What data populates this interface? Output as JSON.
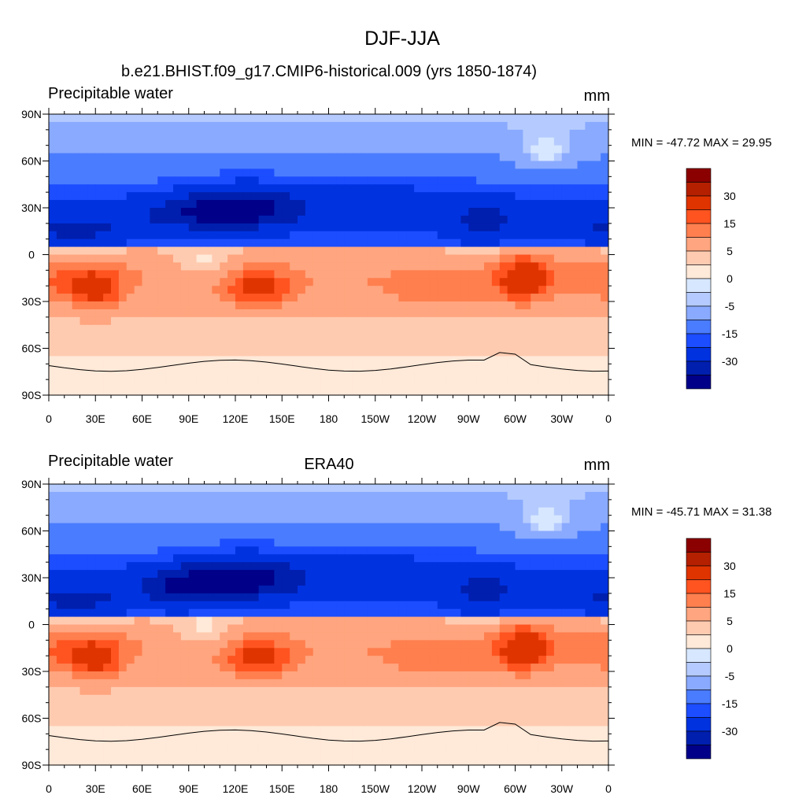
{
  "title": "DJF-JJA",
  "colorbar": {
    "levels": [
      -40,
      -30,
      -20,
      -15,
      -10,
      -5,
      -2,
      0,
      2,
      5,
      10,
      15,
      20,
      30,
      40
    ],
    "labels": [
      "30",
      "15",
      "5",
      "0",
      "-5",
      "-15",
      "-30"
    ],
    "colors": [
      "#8b0000",
      "#b52000",
      "#e03400",
      "#ff5420",
      "#ff7f4f",
      "#ffa57f",
      "#ffcbb0",
      "#ffe9d8",
      "#d7e7ff",
      "#b5cbff",
      "#8aaaff",
      "#4a7cff",
      "#1c4dff",
      "#0032e0",
      "#001fae",
      "#000089"
    ]
  },
  "x_tick_labels": [
    "0",
    "30E",
    "60E",
    "90E",
    "120E",
    "150E",
    "180",
    "150W",
    "120W",
    "90W",
    "60W",
    "30W",
    "0"
  ],
  "y_tick_labels": [
    "90N",
    "60N",
    "30N",
    "0",
    "30S",
    "60S",
    "90S"
  ],
  "chart_data": [
    {
      "type": "heatmap",
      "left_title": "Precipitable water",
      "center_title": "b.e21.BHIST.f09_g17.CMIP6-historical.009 (yrs 1850-1874)",
      "units": "mm",
      "min_max": "MIN = -47.72 MAX =  29.95",
      "min": -47.72,
      "max": 29.95,
      "xlim": [
        0,
        360
      ],
      "ylim": [
        -90,
        90
      ]
    },
    {
      "type": "heatmap",
      "left_title": "Precipitable water",
      "center_title": "ERA40",
      "units": "mm",
      "min_max": "MIN = -45.71 MAX =  31.38",
      "min": -45.71,
      "max": 31.38,
      "xlim": [
        0,
        360
      ],
      "ylim": [
        -90,
        90
      ]
    }
  ]
}
